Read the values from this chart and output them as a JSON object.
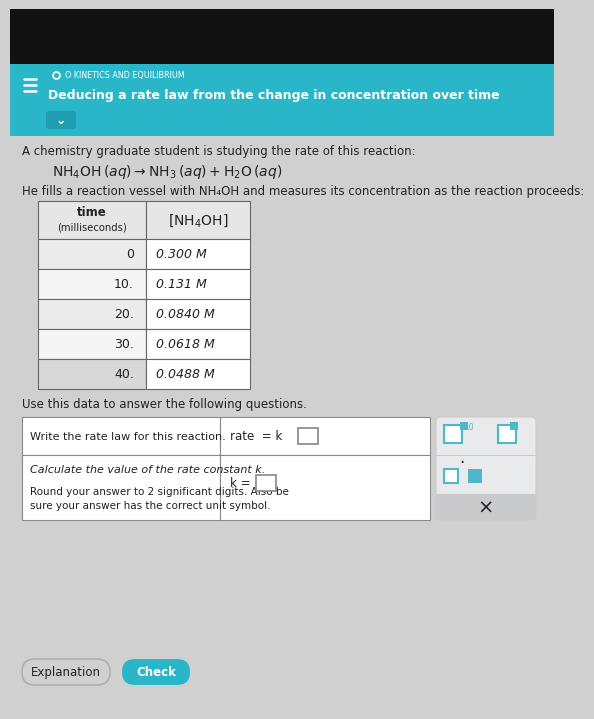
{
  "bg_top_dark": "#111111",
  "bg_header": "#29b6c8",
  "bg_main": "#d0d0d0",
  "header_small": "O KINETICS AND EQUILIBRIUM",
  "header_main": "Deducing a rate law from the change in concentration over time",
  "intro_line1": "A chemistry graduate student is studying the rate of this reaction:",
  "reaction": "NH₄OH (aq) → NH₃ (aq)+H₂O (aq)",
  "fills_line": "He fills a reaction vessel with NH₄OH and measures its concentration as the reaction proceeds:",
  "time_vals": [
    "0",
    "10.",
    "20.",
    "30.",
    "40."
  ],
  "conc_vals": [
    "0.300 M",
    "0.131 M",
    "0.0840 M",
    "0.0618 M",
    "0.0488 M"
  ],
  "use_data": "Use this data to answer the following questions.",
  "q1_left": "Write the rate law for this reaction.",
  "q2_left_line1": "Calculate the value of the rate constant k.",
  "q2_left_line2a": "Round your answer to 2 significant digits. Also be",
  "q2_left_line2b": "sure your answer has the correct unit symbol.",
  "btn_explanation": "Explanation",
  "btn_check": "Check",
  "btn_check_color": "#29b6c8",
  "text_color": "#222222",
  "teal_dark": "#1e9eb0",
  "sidebar_color": "#e8eaec",
  "teal_icon": "#4db8cc"
}
